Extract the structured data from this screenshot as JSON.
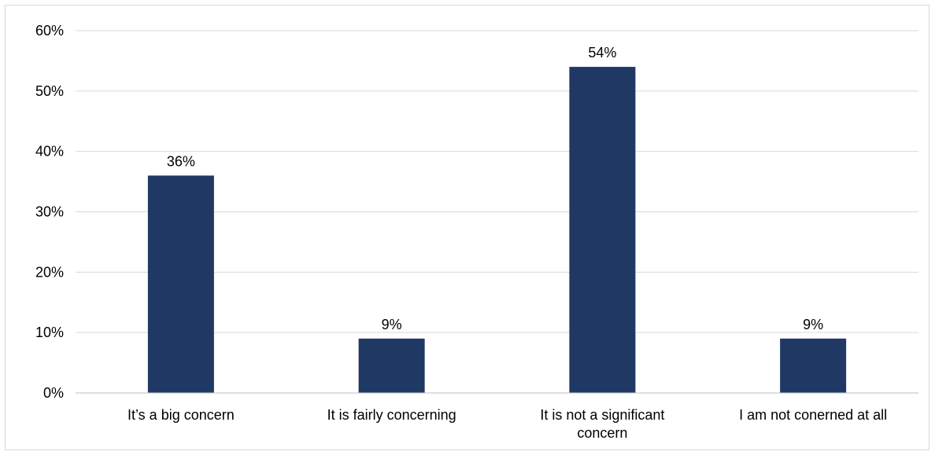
{
  "chart_data": {
    "type": "bar",
    "categories": [
      [
        "It’s a big concern"
      ],
      [
        "It is fairly concerning"
      ],
      [
        "It is not a significant",
        "concern"
      ],
      [
        "I am not conerned at all"
      ]
    ],
    "values": [
      36,
      9,
      54,
      9
    ],
    "data_labels": [
      "36%",
      "9%",
      "54%",
      "9%"
    ],
    "y_ticks": [
      {
        "value": 0,
        "label": "0%"
      },
      {
        "value": 10,
        "label": "10%"
      },
      {
        "value": 20,
        "label": "20%"
      },
      {
        "value": 30,
        "label": "30%"
      },
      {
        "value": 40,
        "label": "40%"
      },
      {
        "value": 50,
        "label": "50%"
      },
      {
        "value": 60,
        "label": "60%"
      }
    ],
    "ylim": [
      0,
      60
    ],
    "grid": true,
    "legend": "none",
    "colors": {
      "bar": "#203864",
      "grid": "#d9d9d9",
      "axis": "#bfbfbf",
      "frame": "#d9d9d9"
    }
  }
}
